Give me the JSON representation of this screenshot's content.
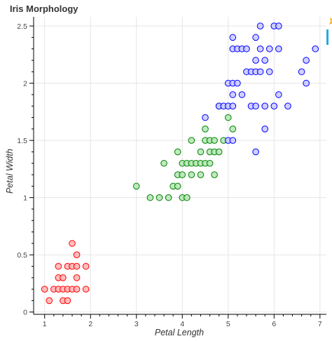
{
  "chart_data": {
    "type": "scatter",
    "title": "Iris Morphology",
    "xlabel": "Petal Length",
    "ylabel": "Petal Width",
    "xlim": [
      0.76,
      7.14
    ],
    "ylim": [
      -0.02,
      2.58
    ],
    "xticks": [
      "1",
      "2",
      "3",
      "4",
      "5",
      "6",
      "7"
    ],
    "yticks": [
      "0",
      "0.5",
      "1",
      "1.5",
      "2",
      "2.5"
    ],
    "grid": true,
    "series": [
      {
        "color": "#ff0000",
        "fill": "#ffb3b3",
        "points": [
          [
            1.0,
            0.2
          ],
          [
            1.1,
            0.1
          ],
          [
            1.2,
            0.2
          ],
          [
            1.3,
            0.2
          ],
          [
            1.3,
            0.3
          ],
          [
            1.3,
            0.4
          ],
          [
            1.4,
            0.1
          ],
          [
            1.4,
            0.2
          ],
          [
            1.4,
            0.3
          ],
          [
            1.5,
            0.1
          ],
          [
            1.5,
            0.2
          ],
          [
            1.5,
            0.4
          ],
          [
            1.6,
            0.2
          ],
          [
            1.6,
            0.4
          ],
          [
            1.6,
            0.6
          ],
          [
            1.7,
            0.2
          ],
          [
            1.7,
            0.3
          ],
          [
            1.7,
            0.4
          ],
          [
            1.7,
            0.5
          ],
          [
            1.9,
            0.2
          ],
          [
            1.9,
            0.4
          ]
        ]
      },
      {
        "color": "#008000",
        "fill": "#b3e6b3",
        "points": [
          [
            3.0,
            1.1
          ],
          [
            3.3,
            1.0
          ],
          [
            3.5,
            1.0
          ],
          [
            3.6,
            1.3
          ],
          [
            3.7,
            1.0
          ],
          [
            3.8,
            1.1
          ],
          [
            3.9,
            1.1
          ],
          [
            3.9,
            1.2
          ],
          [
            3.9,
            1.4
          ],
          [
            4.0,
            1.0
          ],
          [
            4.0,
            1.2
          ],
          [
            4.0,
            1.3
          ],
          [
            4.1,
            1.0
          ],
          [
            4.1,
            1.3
          ],
          [
            4.2,
            1.2
          ],
          [
            4.2,
            1.3
          ],
          [
            4.2,
            1.5
          ],
          [
            4.3,
            1.3
          ],
          [
            4.4,
            1.2
          ],
          [
            4.4,
            1.3
          ],
          [
            4.4,
            1.4
          ],
          [
            4.5,
            1.3
          ],
          [
            4.5,
            1.5
          ],
          [
            4.5,
            1.6
          ],
          [
            4.6,
            1.3
          ],
          [
            4.6,
            1.4
          ],
          [
            4.6,
            1.5
          ],
          [
            4.7,
            1.2
          ],
          [
            4.7,
            1.4
          ],
          [
            4.7,
            1.5
          ],
          [
            4.8,
            1.4
          ],
          [
            4.8,
            1.8
          ],
          [
            4.9,
            1.5
          ],
          [
            5.0,
            1.7
          ],
          [
            5.1,
            1.6
          ]
        ]
      },
      {
        "color": "#0000ff",
        "fill": "#c8c8ff",
        "points": [
          [
            4.5,
            1.7
          ],
          [
            4.8,
            1.8
          ],
          [
            4.9,
            1.8
          ],
          [
            5.0,
            1.5
          ],
          [
            5.0,
            1.8
          ],
          [
            5.0,
            2.0
          ],
          [
            5.1,
            1.5
          ],
          [
            5.1,
            1.8
          ],
          [
            5.1,
            1.9
          ],
          [
            5.1,
            2.0
          ],
          [
            5.1,
            2.3
          ],
          [
            5.1,
            2.4
          ],
          [
            5.2,
            2.0
          ],
          [
            5.2,
            2.3
          ],
          [
            5.3,
            1.9
          ],
          [
            5.3,
            2.3
          ],
          [
            5.4,
            2.1
          ],
          [
            5.4,
            2.3
          ],
          [
            5.5,
            1.8
          ],
          [
            5.5,
            2.1
          ],
          [
            5.6,
            1.4
          ],
          [
            5.6,
            1.8
          ],
          [
            5.6,
            2.1
          ],
          [
            5.6,
            2.2
          ],
          [
            5.6,
            2.4
          ],
          [
            5.7,
            2.1
          ],
          [
            5.7,
            2.3
          ],
          [
            5.7,
            2.5
          ],
          [
            5.8,
            1.6
          ],
          [
            5.8,
            1.8
          ],
          [
            5.8,
            2.2
          ],
          [
            5.9,
            2.1
          ],
          [
            5.9,
            2.3
          ],
          [
            6.0,
            1.8
          ],
          [
            6.0,
            2.5
          ],
          [
            6.1,
            1.9
          ],
          [
            6.1,
            2.3
          ],
          [
            6.1,
            2.5
          ],
          [
            6.3,
            1.8
          ],
          [
            6.6,
            2.1
          ],
          [
            6.7,
            2.0
          ],
          [
            6.7,
            2.2
          ],
          [
            6.9,
            2.3
          ]
        ]
      }
    ]
  }
}
